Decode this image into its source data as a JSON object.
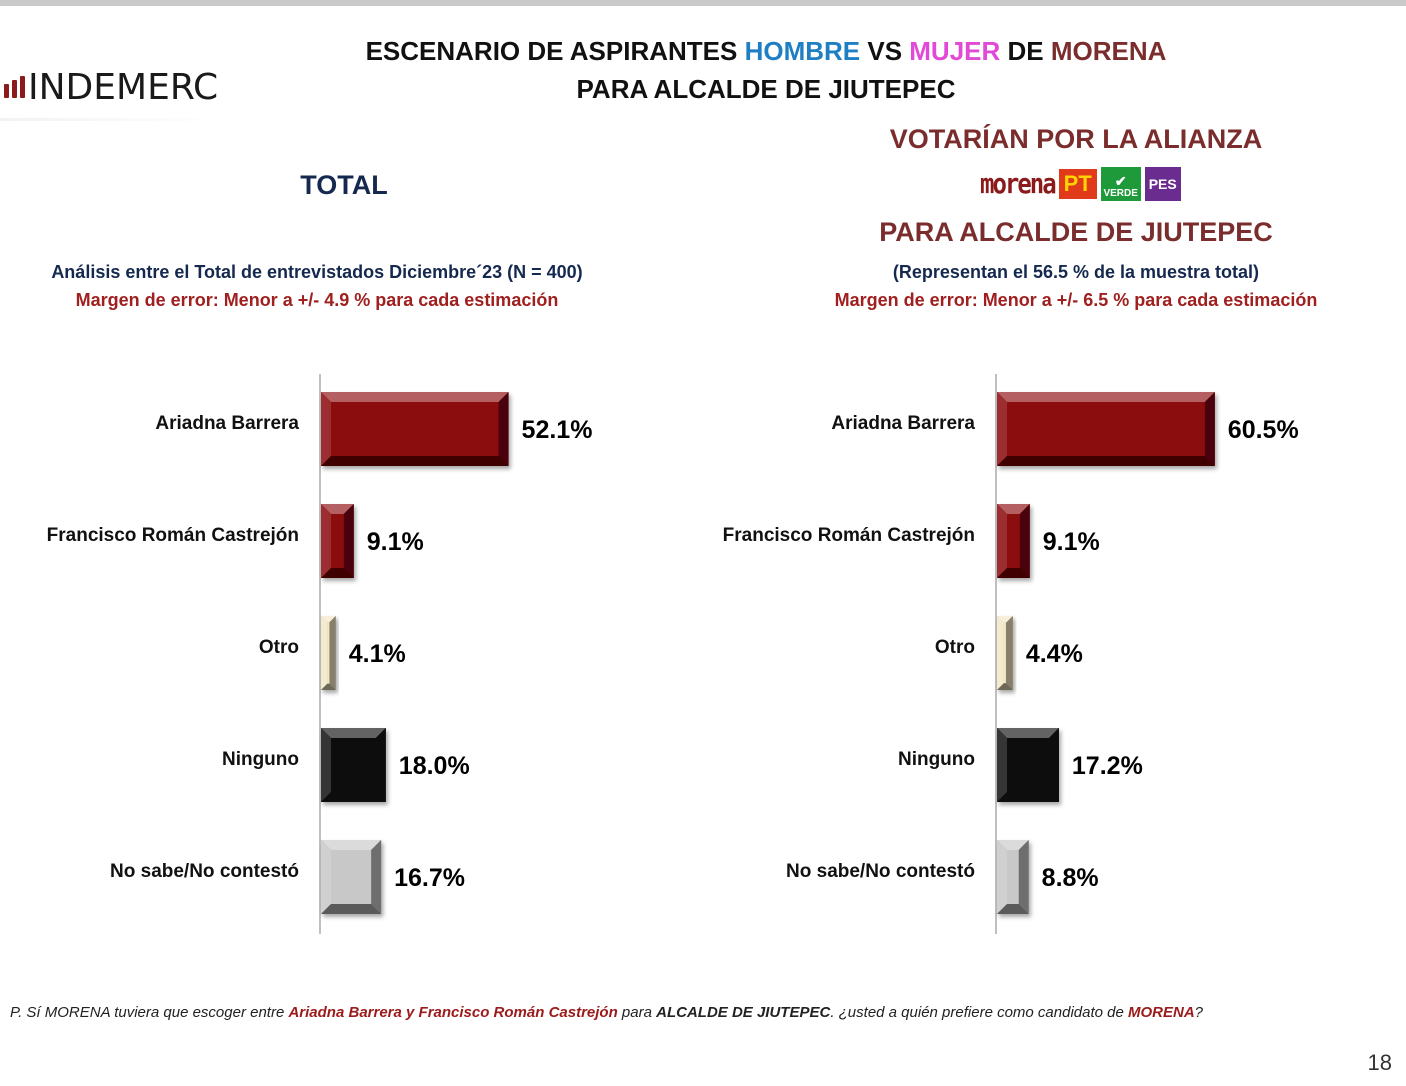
{
  "header": {
    "logo_text": "INDEMERC",
    "title_1": "ESCENARIO DE ASPIRANTES ",
    "title_hombre": "HOMBRE",
    "title_vs": " VS ",
    "title_mujer": "MUJER",
    "title_de": " DE ",
    "title_morena": "MORENA",
    "title_2": "PARA ALCALDE DE JIUTEPEC"
  },
  "left": {
    "section_title": "TOTAL",
    "subtitle_1": "Análisis entre el Total de entrevistados Diciembre´23  (N = 400)",
    "subtitle_2": "Margen de error: Menor a +/- 4.9 %  para cada estimación"
  },
  "right": {
    "section_title_1": "VOTARÍAN POR LA ALIANZA",
    "section_title_2": "PARA ALCALDE DE JIUTEPEC",
    "subtitle_1": "(Representan el 56.5 % de la muestra total)",
    "subtitle_2": "Margen de error: Menor a +/-  6.5 %  para cada estimación",
    "party_logos": {
      "morena": "morena",
      "pt": "PT",
      "verde": "VERDE",
      "pes": "PES"
    }
  },
  "chart_data": [
    {
      "type": "bar",
      "orientation": "horizontal",
      "title": "TOTAL",
      "categories": [
        "Ariadna Barrera",
        "Francisco Román Castrejón",
        "Otro",
        "Ninguno",
        "No sabe/No contestó"
      ],
      "values": [
        52.1,
        9.1,
        4.1,
        18.0,
        16.7
      ],
      "value_labels": [
        "52.1%",
        "9.1%",
        "4.1%",
        "18.0%",
        "16.7%"
      ],
      "colors": [
        "#8b0a0e",
        "#8b0a0e",
        "#f2e6c4",
        "#111111",
        "#c8c8c8"
      ],
      "xlim": [
        0,
        100
      ],
      "grid": false
    },
    {
      "type": "bar",
      "orientation": "horizontal",
      "title": "VOTARÍAN POR LA ALIANZA PARA ALCALDE DE JIUTEPEC",
      "categories": [
        "Ariadna Barrera",
        "Francisco Román Castrejón",
        "Otro",
        "Ninguno",
        "No sabe/No contestó"
      ],
      "values": [
        60.5,
        9.1,
        4.4,
        17.2,
        8.8
      ],
      "value_labels": [
        "60.5%",
        "9.1%",
        "4.4%",
        "17.2%",
        "8.8%"
      ],
      "colors": [
        "#8b0a0e",
        "#8b0a0e",
        "#f2e6c4",
        "#111111",
        "#c8c8c8"
      ],
      "xlim": [
        0,
        100
      ],
      "grid": false
    }
  ],
  "footer": {
    "q_1": "P. Sí MORENA tuviera que escoger entre ",
    "q_names": "Ariadna Barrera y Francisco Román Castrejón",
    "q_2": " para ",
    "q_office": "ALCALDE DE JIUTEPEC",
    "q_3": ". ¿usted a quién prefiere como candidato de ",
    "q_party": "MORENA",
    "q_4": "?",
    "page_number": "18"
  }
}
